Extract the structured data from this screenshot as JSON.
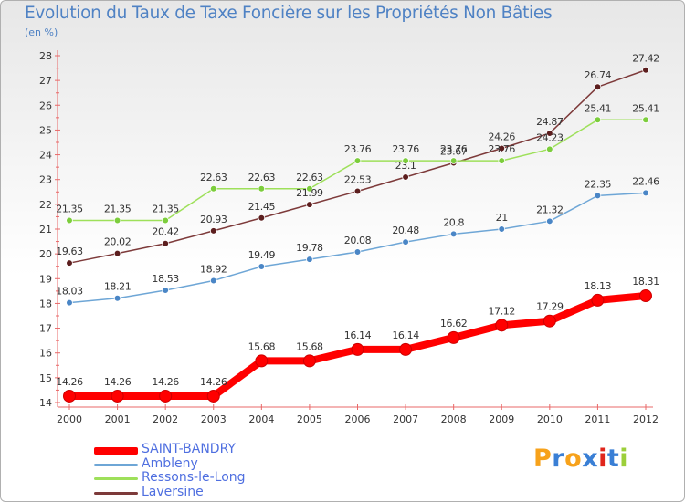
{
  "chart_data": {
    "type": "line",
    "title": "Evolution du Taux de Taxe Foncière sur les Propriétés Non Bâties",
    "subtitle": "(en %)",
    "xlabel": "",
    "ylabel": "",
    "ylim": [
      14,
      28
    ],
    "yticks": [
      14,
      15,
      16,
      17,
      18,
      19,
      20,
      21,
      22,
      23,
      24,
      25,
      26,
      27,
      28
    ],
    "grid": false,
    "legend_position": "bottom-left",
    "x": [
      2000,
      2001,
      2002,
      2003,
      2004,
      2005,
      2006,
      2007,
      2008,
      2009,
      2010,
      2011,
      2012
    ],
    "series": [
      {
        "name": "SAINT-BANDRY",
        "color": "#ff0000",
        "marker_color": "#ff0000",
        "values": [
          14.26,
          14.26,
          14.26,
          14.26,
          15.68,
          15.68,
          16.14,
          16.14,
          16.62,
          17.12,
          17.29,
          18.13,
          18.31
        ],
        "labels": [
          "14.26",
          "14.26",
          "14.26",
          "14.26",
          "15.68",
          "15.68",
          "16.14",
          "16.14",
          "16.62",
          "17.12",
          "17.29",
          "18.13",
          "18.31"
        ]
      },
      {
        "name": "Ambleny",
        "color": "#6ea6d6",
        "marker_color": "#4a86c6",
        "values": [
          18.03,
          18.21,
          18.53,
          18.92,
          19.49,
          19.78,
          20.08,
          20.48,
          20.8,
          21,
          21.32,
          22.35,
          22.46
        ],
        "labels": [
          "18.03",
          "18.21",
          "18.53",
          "18.92",
          "19.49",
          "19.78",
          "20.08",
          "20.48",
          "20.8",
          "21",
          "21.32",
          "22.35",
          "22.46"
        ]
      },
      {
        "name": "Ressons-le-Long",
        "color": "#9ee05a",
        "marker_color": "#7ccd3c",
        "values": [
          21.35,
          21.35,
          21.35,
          22.63,
          22.63,
          22.63,
          23.76,
          23.76,
          23.76,
          23.76,
          24.23,
          25.41,
          25.41
        ],
        "labels": [
          "21.35",
          "21.35",
          "21.35",
          "22.63",
          "22.63",
          "22.63",
          "23.76",
          "23.76",
          "23.76",
          "23.76",
          "24.23",
          "25.41",
          "25.41"
        ]
      },
      {
        "name": "Laversine",
        "color": "#7d3a3a",
        "marker_color": "#5c1e1e",
        "values": [
          19.63,
          20.02,
          20.42,
          20.93,
          21.45,
          21.99,
          22.53,
          23.1,
          23.67,
          24.26,
          24.87,
          26.74,
          27.42
        ],
        "labels": [
          "19.63",
          "20.02",
          "20.42",
          "20.93",
          "21.45",
          "21.99",
          "22.53",
          "23.1",
          "23.67",
          "24.26",
          "24.87",
          "26.74",
          "27.42"
        ]
      }
    ]
  },
  "logo": {
    "text": "Proxiti",
    "colors": [
      "#f7a21b",
      "#3a7fd5",
      "#f7a21b",
      "#3a7fd5",
      "#e0261c",
      "#3a7fd5",
      "#9ccf3a"
    ]
  }
}
